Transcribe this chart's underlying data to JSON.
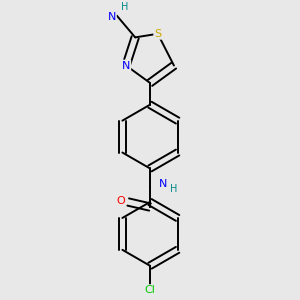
{
  "bg_color": "#e8e8e8",
  "bond_color": "#000000",
  "atom_colors": {
    "N": "#0000ff",
    "O": "#ff0000",
    "S": "#ccaa00",
    "Cl": "#00cc00",
    "H": "#008888"
  },
  "figsize": [
    3.0,
    3.0
  ],
  "dpi": 100
}
